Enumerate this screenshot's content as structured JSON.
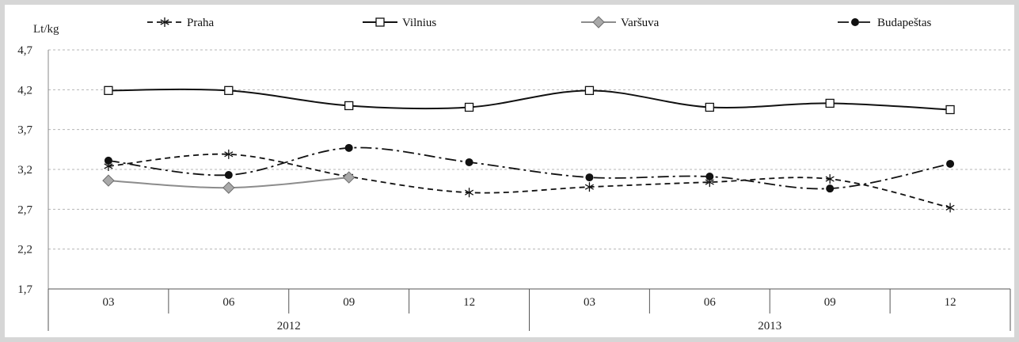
{
  "chart_data": {
    "type": "line",
    "ylabel": "Lt/kg",
    "ylim": [
      1.7,
      4.7
    ],
    "yticks": [
      "4,7",
      "4,2",
      "3,7",
      "3,2",
      "2,7",
      "2,2",
      "1,7"
    ],
    "ytick_values": [
      4.7,
      4.2,
      3.7,
      3.2,
      2.7,
      2.2,
      1.7
    ],
    "categories": [
      "03",
      "06",
      "09",
      "12",
      "03",
      "06",
      "09",
      "12"
    ],
    "groups": [
      {
        "label": "2012",
        "count": 4
      },
      {
        "label": "2013",
        "count": 4
      }
    ],
    "grid": true,
    "legend_position": "top",
    "series": [
      {
        "name": "Praha",
        "style": "dashed",
        "marker": "star",
        "color": "#111111",
        "values": [
          3.24,
          3.39,
          3.11,
          2.91,
          2.98,
          3.04,
          3.08,
          2.72
        ]
      },
      {
        "name": "Vilnius",
        "style": "solid",
        "marker": "square",
        "color": "#111111",
        "values": [
          4.19,
          4.19,
          4.0,
          3.98,
          4.19,
          3.98,
          4.03,
          3.95
        ]
      },
      {
        "name": "Varšuva",
        "style": "solid",
        "marker": "diamond",
        "color": "#8c8c8c",
        "values": [
          3.06,
          2.97,
          3.1,
          null,
          null,
          null,
          null,
          null
        ]
      },
      {
        "name": "Budapeštas",
        "style": "dashdot",
        "marker": "circle",
        "color": "#111111",
        "values": [
          3.31,
          3.13,
          3.47,
          3.29,
          3.1,
          3.11,
          2.96,
          3.27
        ]
      }
    ]
  }
}
